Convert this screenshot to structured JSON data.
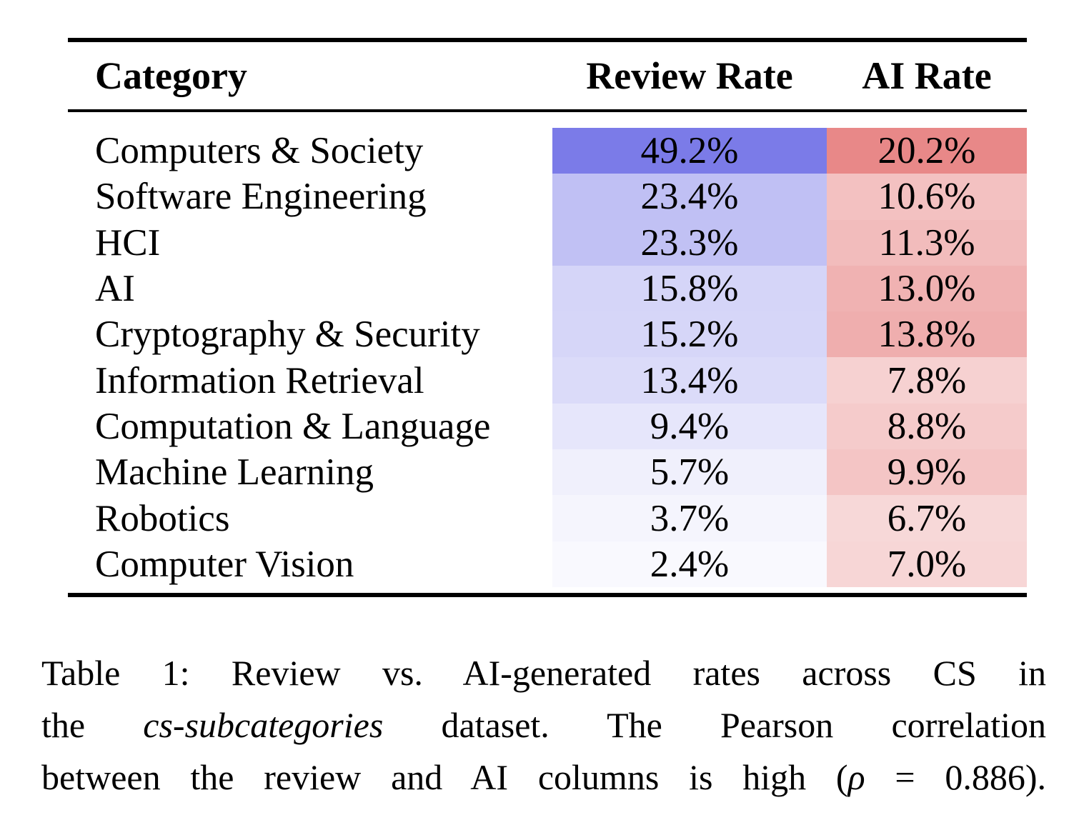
{
  "page": {
    "background": "#ffffff",
    "text_color": "#000000",
    "rule_color": "#000000"
  },
  "table": {
    "columns": [
      {
        "label": "Category"
      },
      {
        "label": "Review Rate"
      },
      {
        "label": "AI Rate"
      }
    ],
    "rows": [
      {
        "category": "Computers & Society",
        "review_rate": "49.2%",
        "ai_rate": "20.2%",
        "review_color": "#7b7be8",
        "ai_color": "#e88888"
      },
      {
        "category": "Software Engineering",
        "review_rate": "23.4%",
        "ai_rate": "10.6%",
        "review_color": "#c0c0f4",
        "ai_color": "#f3c1c1"
      },
      {
        "category": "HCI",
        "review_rate": "23.3%",
        "ai_rate": "11.3%",
        "review_color": "#c1c1f4",
        "ai_color": "#f2bcbc"
      },
      {
        "category": "AI",
        "review_rate": "15.8%",
        "ai_rate": "13.0%",
        "review_color": "#d5d5f8",
        "ai_color": "#f0b2b2"
      },
      {
        "category": "Cryptography & Security",
        "review_rate": "15.2%",
        "ai_rate": "13.8%",
        "review_color": "#d6d6f8",
        "ai_color": "#efaeae"
      },
      {
        "category": "Information Retrieval",
        "review_rate": "13.4%",
        "ai_rate": "7.8%",
        "review_color": "#dbdbf9",
        "ai_color": "#f6d1d1"
      },
      {
        "category": "Computation & Language",
        "review_rate": "9.4%",
        "ai_rate": "8.8%",
        "review_color": "#e6e6fb",
        "ai_color": "#f5cbcb"
      },
      {
        "category": "Machine Learning",
        "review_rate": "5.7%",
        "ai_rate": "9.9%",
        "review_color": "#f0f0fc",
        "ai_color": "#f4c5c5"
      },
      {
        "category": "Robotics",
        "review_rate": "3.7%",
        "ai_rate": "6.7%",
        "review_color": "#f5f5fd",
        "ai_color": "#f7d8d8"
      },
      {
        "category": "Computer Vision",
        "review_rate": "2.4%",
        "ai_rate": "7.0%",
        "review_color": "#f9f9fe",
        "ai_color": "#f7d6d6"
      }
    ]
  },
  "caption": {
    "lines": [
      {
        "segments": [
          {
            "text": "Table 1: Review vs. AI-generated rates across CS in",
            "italic": false
          }
        ]
      },
      {
        "segments": [
          {
            "text": "the ",
            "italic": false
          },
          {
            "text": "cs-subcategories",
            "italic": true
          },
          {
            "text": " dataset. The Pearson correlation",
            "italic": false
          }
        ]
      },
      {
        "segments": [
          {
            "text": "between the review and AI columns is high (",
            "italic": false
          },
          {
            "text": "ρ",
            "italic": true
          },
          {
            "text": " = 0.886).",
            "italic": false
          }
        ]
      }
    ]
  },
  "chart_data": {
    "type": "table",
    "title": "Table 1: Review vs. AI-generated rates across CS in the cs-subcategories dataset",
    "categories": [
      "Computers & Society",
      "Software Engineering",
      "HCI",
      "AI",
      "Cryptography & Security",
      "Information Retrieval",
      "Computation & Language",
      "Machine Learning",
      "Robotics",
      "Computer Vision"
    ],
    "series": [
      {
        "name": "Review Rate",
        "values": [
          49.2,
          23.4,
          23.3,
          15.8,
          15.2,
          13.4,
          9.4,
          5.7,
          3.7,
          2.4
        ],
        "unit": "%",
        "shading_color_max": "#7b7be8"
      },
      {
        "name": "AI Rate",
        "values": [
          20.2,
          10.6,
          11.3,
          13.0,
          13.8,
          7.8,
          8.8,
          9.9,
          6.7,
          7.0
        ],
        "unit": "%",
        "shading_color_max": "#e88888"
      }
    ],
    "pearson_correlation": 0.886
  }
}
